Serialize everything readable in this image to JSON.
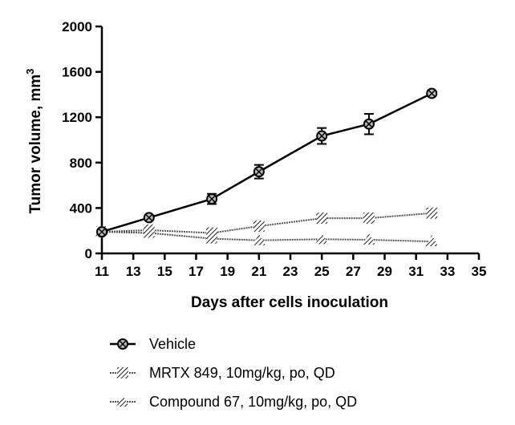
{
  "chart_data": {
    "type": "line",
    "xlabel": "Days after cells inoculation",
    "ylabel_main": "Tumor volume, mm",
    "ylabel_sup": "3",
    "xlim": [
      11,
      35
    ],
    "ylim": [
      0,
      2000
    ],
    "x_ticks": [
      11,
      13,
      15,
      17,
      19,
      21,
      23,
      25,
      27,
      29,
      31,
      33,
      35
    ],
    "y_ticks": [
      0,
      400,
      800,
      1200,
      1600,
      2000
    ],
    "grid": false,
    "legend_position": "bottom",
    "series": [
      {
        "name": "Vehicle",
        "marker": "circle",
        "line_style": "solid",
        "x": [
          11,
          14,
          18,
          21,
          25,
          28,
          32
        ],
        "y": [
          190,
          315,
          480,
          720,
          1035,
          1140,
          1410
        ],
        "error": [
          0,
          15,
          45,
          60,
          70,
          90,
          20
        ]
      },
      {
        "name": "MRTX 849, 10mg/kg, po, QD",
        "marker": "hatched-square",
        "line_style": "hatched",
        "x": [
          11,
          14,
          18,
          21,
          25,
          28,
          32
        ],
        "y": [
          190,
          205,
          180,
          240,
          310,
          310,
          355
        ],
        "error": [
          0,
          0,
          0,
          0,
          0,
          0,
          0
        ]
      },
      {
        "name": "Compound 67, 10mg/kg, po, QD",
        "marker": "triangle",
        "line_style": "hatched",
        "x": [
          11,
          14,
          18,
          21,
          25,
          28,
          32
        ],
        "y": [
          190,
          180,
          130,
          115,
          125,
          120,
          105
        ],
        "error": [
          0,
          0,
          0,
          0,
          0,
          0,
          0
        ]
      }
    ]
  }
}
